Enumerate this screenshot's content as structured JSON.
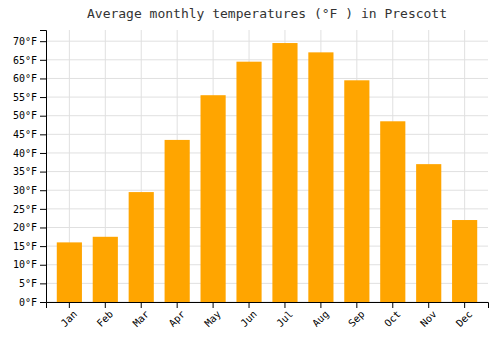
{
  "chart_data": {
    "type": "bar",
    "title": "Average monthly temperatures (°F ) in Prescott",
    "categories": [
      "Jan",
      "Feb",
      "Mar",
      "Apr",
      "May",
      "Jun",
      "Jul",
      "Aug",
      "Sep",
      "Oct",
      "Nov",
      "Dec"
    ],
    "values": [
      16,
      17.5,
      29.5,
      43.5,
      55.5,
      64.5,
      69.5,
      67,
      59.5,
      48.5,
      37,
      22
    ],
    "color": "#FFA500",
    "ylim": [
      0,
      73
    ],
    "yticks": [
      {
        "value": 0,
        "label": "0°F"
      },
      {
        "value": 5,
        "label": "5°F"
      },
      {
        "value": 10,
        "label": "10°F"
      },
      {
        "value": 15,
        "label": "15°F"
      },
      {
        "value": 20,
        "label": "20°F"
      },
      {
        "value": 25,
        "label": "25°F"
      },
      {
        "value": 30,
        "label": "30°F"
      },
      {
        "value": 35,
        "label": "35°F"
      },
      {
        "value": 40,
        "label": "40°F"
      },
      {
        "value": 45,
        "label": "45°F"
      },
      {
        "value": 50,
        "label": "50°F"
      },
      {
        "value": 55,
        "label": "55°F"
      },
      {
        "value": 60,
        "label": "60°F"
      },
      {
        "value": 65,
        "label": "65°F"
      },
      {
        "value": 70,
        "label": "70°F"
      }
    ],
    "grid": true
  }
}
